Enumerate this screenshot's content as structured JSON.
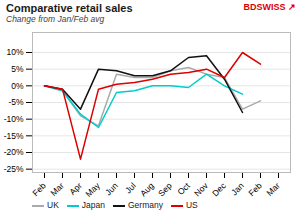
{
  "chart_data": {
    "type": "line",
    "title": "Comparative retail sales",
    "subtitle": "Change from Jan/Feb avg",
    "annotations": [
      "BDSWISS",
      "↗"
    ],
    "categories": [
      "Feb",
      "Mar",
      "Apr",
      "May",
      "Jun",
      "Jul",
      "Aug",
      "Sep",
      "Oct",
      "Nov",
      "Dec",
      "Jan",
      "Feb",
      "Mar"
    ],
    "series": [
      {
        "name": "UK",
        "color": "#aaaaaa",
        "values": [
          0,
          -1.5,
          -9,
          -12,
          3.5,
          2.5,
          2.5,
          4.5,
          5.5,
          3.5,
          2.5,
          -7,
          -4.5,
          null
        ]
      },
      {
        "name": "Japan",
        "color": "#00cccc",
        "values": [
          0,
          -1.5,
          -8.5,
          -12.5,
          -2,
          -1.5,
          0,
          0,
          -0.5,
          3.5,
          0,
          -2.5,
          null,
          null
        ]
      },
      {
        "name": "Germany",
        "color": "#111111",
        "values": [
          0,
          -1,
          -7,
          5,
          4.5,
          3,
          3,
          4.5,
          8.5,
          9,
          2,
          -8,
          null,
          null
        ]
      },
      {
        "name": "US",
        "color": "#dd0000",
        "values": [
          0,
          -1,
          -22,
          -1,
          0.5,
          1,
          2,
          3.5,
          4,
          5,
          2.5,
          10,
          6.5,
          null
        ]
      }
    ],
    "ylim": [
      -26,
      16
    ],
    "yticks": [
      {
        "value": -25,
        "label": "-25%"
      },
      {
        "value": -20,
        "label": "-20%"
      },
      {
        "value": -15,
        "label": "-15%"
      },
      {
        "value": -10,
        "label": "-10%"
      },
      {
        "value": -5,
        "label": "-5%"
      },
      {
        "value": 0,
        "label": "0%"
      },
      {
        "value": 5,
        "label": "5%"
      },
      {
        "value": 10,
        "label": "10%"
      }
    ],
    "grid": true,
    "legend": "lower left"
  }
}
